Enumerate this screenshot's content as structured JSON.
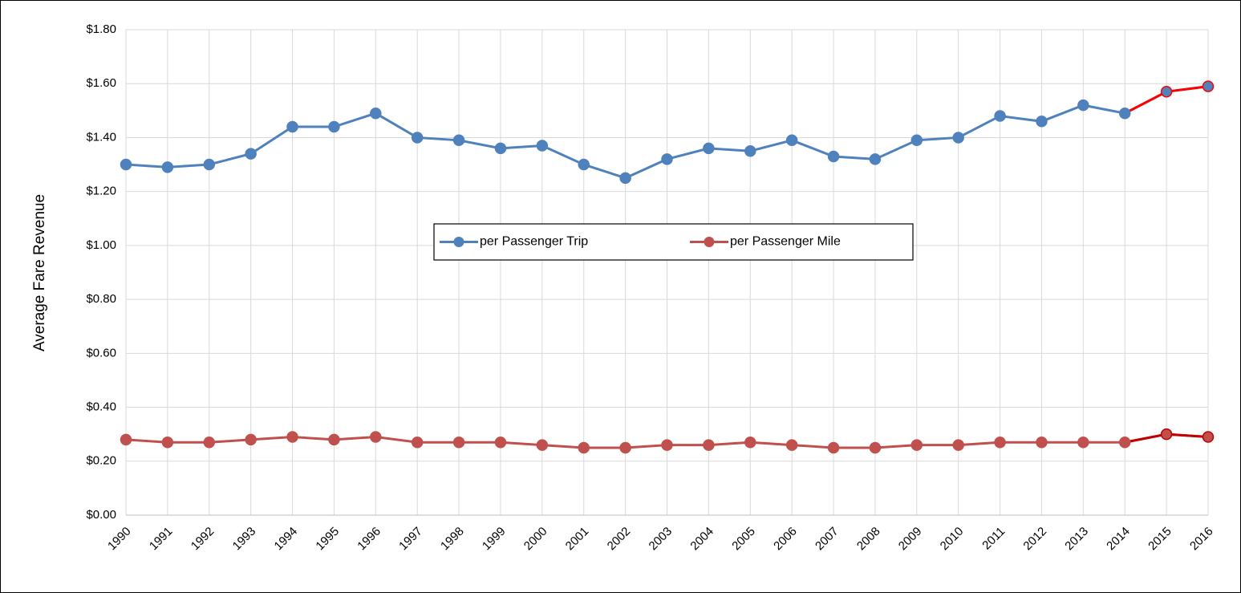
{
  "chart_data": {
    "type": "line",
    "y_label": "Average Fare Revenue",
    "categories": [
      "1990",
      "1991",
      "1992",
      "1993",
      "1994",
      "1995",
      "1996",
      "1997",
      "1998",
      "1999",
      "2000",
      "2001",
      "2002",
      "2003",
      "2004",
      "2005",
      "2006",
      "2007",
      "2008",
      "2009",
      "2010",
      "2011",
      "2012",
      "2013",
      "2014",
      "2015",
      "2016"
    ],
    "series": [
      {
        "name": "per Passenger Trip",
        "color": "#4f81bd",
        "highlight_color": "#ff0000",
        "values": [
          1.3,
          1.29,
          1.3,
          1.34,
          1.44,
          1.44,
          1.49,
          1.4,
          1.39,
          1.36,
          1.37,
          1.3,
          1.25,
          1.32,
          1.36,
          1.35,
          1.39,
          1.33,
          1.32,
          1.39,
          1.4,
          1.48,
          1.46,
          1.52,
          1.49,
          1.57,
          1.59
        ]
      },
      {
        "name": "per Passenger Mile",
        "color": "#c0504d",
        "highlight_color": "#c00000",
        "values": [
          0.28,
          0.27,
          0.27,
          0.28,
          0.29,
          0.28,
          0.29,
          0.27,
          0.27,
          0.27,
          0.26,
          0.25,
          0.25,
          0.26,
          0.26,
          0.27,
          0.26,
          0.25,
          0.25,
          0.26,
          0.26,
          0.27,
          0.27,
          0.27,
          0.27,
          0.3,
          0.29
        ]
      }
    ],
    "highlight_from": "2014",
    "ylim": [
      0,
      1.8
    ],
    "yticks": [
      {
        "value": 0,
        "label": "$0.00"
      },
      {
        "value": 0.2,
        "label": "$0.20"
      },
      {
        "value": 0.4,
        "label": "$0.40"
      },
      {
        "value": 0.6,
        "label": "$0.60"
      },
      {
        "value": 0.8,
        "label": "$0.80"
      },
      {
        "value": 1,
        "label": "$1.00"
      },
      {
        "value": 1.2,
        "label": "$1.20"
      },
      {
        "value": 1.4,
        "label": "$1.40"
      },
      {
        "value": 1.6,
        "label": "$1.60"
      },
      {
        "value": 1.8,
        "label": "$1.80"
      }
    ],
    "grid": true,
    "legend": "center"
  }
}
